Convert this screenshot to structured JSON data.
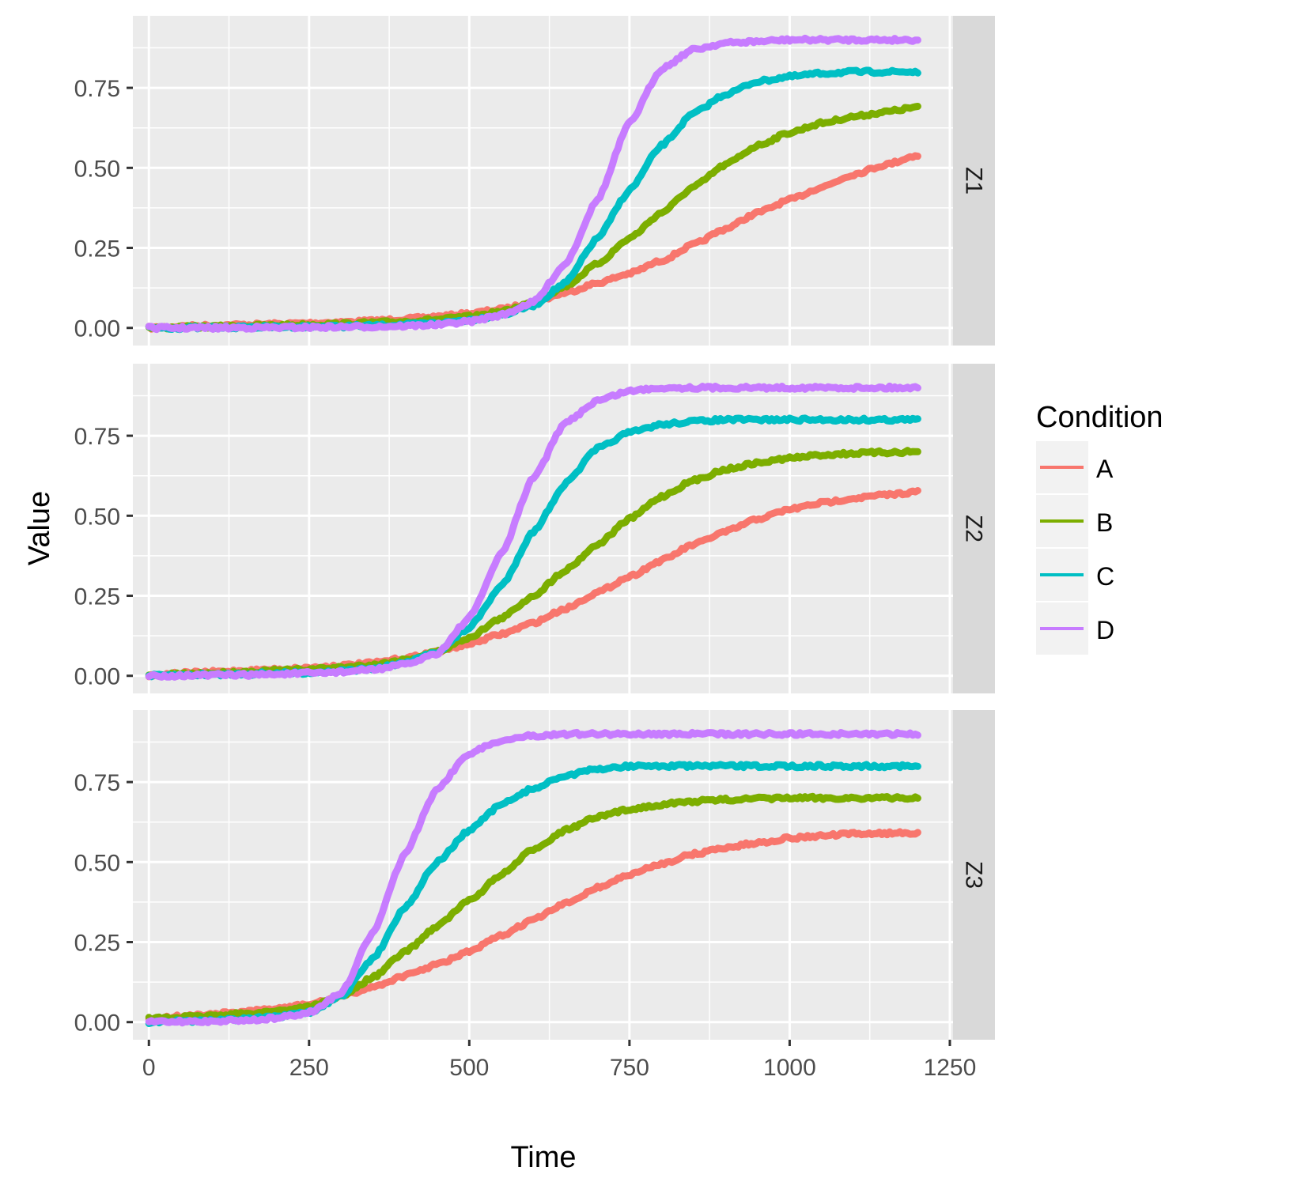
{
  "chart_data": {
    "type": "line",
    "facet_by": "rows",
    "xlabel": "Time",
    "ylabel": "Value",
    "xlim": [
      -25,
      1255
    ],
    "ylim": [
      -0.055,
      0.975
    ],
    "x_ticks": [
      0,
      250,
      500,
      750,
      1000,
      1250
    ],
    "x_tick_labels": [
      "0",
      "250",
      "500",
      "750",
      "1000",
      "1250"
    ],
    "y_ticks": [
      0,
      0.25,
      0.5,
      0.75
    ],
    "y_tick_labels": [
      "0.00",
      "0.25",
      "0.50",
      "0.75"
    ],
    "grid": true,
    "legend": {
      "title": "Condition",
      "position": "right",
      "entries": [
        "A",
        "B",
        "C",
        "D"
      ]
    },
    "colors": {
      "A": "#F8766D",
      "B": "#7CAE00",
      "C": "#00BFC4",
      "D": "#C77CFF",
      "panel_bg": "#EBEBEB",
      "strip_bg": "#D9D9D9",
      "grid": "#FFFFFF"
    },
    "x_points": [
      0,
      50,
      100,
      150,
      200,
      250,
      300,
      350,
      400,
      450,
      500,
      550,
      600,
      650,
      700,
      750,
      800,
      850,
      900,
      950,
      1000,
      1050,
      1100,
      1150,
      1200
    ],
    "panels": [
      {
        "label": "Z1",
        "series": [
          {
            "name": "A",
            "values": [
              0.0,
              0.005,
              0.008,
              0.01,
              0.012,
              0.015,
              0.018,
              0.022,
              0.028,
              0.035,
              0.045,
              0.058,
              0.08,
              0.11,
              0.14,
              0.17,
              0.21,
              0.26,
              0.31,
              0.36,
              0.4,
              0.44,
              0.48,
              0.51,
              0.54
            ]
          },
          {
            "name": "B",
            "values": [
              0.0,
              0.002,
              0.004,
              0.006,
              0.008,
              0.01,
              0.012,
              0.016,
              0.02,
              0.026,
              0.035,
              0.05,
              0.08,
              0.13,
              0.2,
              0.28,
              0.36,
              0.44,
              0.51,
              0.57,
              0.61,
              0.64,
              0.66,
              0.675,
              0.69
            ]
          },
          {
            "name": "C",
            "values": [
              0.0,
              0.0,
              0.001,
              0.002,
              0.003,
              0.004,
              0.005,
              0.007,
              0.01,
              0.015,
              0.025,
              0.04,
              0.07,
              0.14,
              0.28,
              0.43,
              0.57,
              0.67,
              0.73,
              0.77,
              0.785,
              0.795,
              0.8,
              0.8,
              0.8
            ]
          },
          {
            "name": "D",
            "values": [
              0.0,
              0.0,
              0.0,
              0.001,
              0.001,
              0.002,
              0.003,
              0.004,
              0.006,
              0.01,
              0.02,
              0.04,
              0.08,
              0.2,
              0.4,
              0.64,
              0.81,
              0.87,
              0.89,
              0.895,
              0.9,
              0.9,
              0.9,
              0.9,
              0.9
            ]
          }
        ]
      },
      {
        "label": "Z2",
        "series": [
          {
            "name": "A",
            "values": [
              0.0,
              0.008,
              0.012,
              0.016,
              0.02,
              0.025,
              0.032,
              0.04,
              0.055,
              0.075,
              0.1,
              0.13,
              0.165,
              0.21,
              0.26,
              0.31,
              0.36,
              0.41,
              0.45,
              0.49,
              0.52,
              0.54,
              0.555,
              0.565,
              0.575
            ]
          },
          {
            "name": "B",
            "values": [
              0.0,
              0.005,
              0.008,
              0.012,
              0.016,
              0.02,
              0.026,
              0.034,
              0.05,
              0.075,
              0.12,
              0.18,
              0.25,
              0.33,
              0.41,
              0.49,
              0.56,
              0.61,
              0.645,
              0.665,
              0.68,
              0.69,
              0.695,
              0.698,
              0.7
            ]
          },
          {
            "name": "C",
            "values": [
              0.0,
              0.002,
              0.004,
              0.006,
              0.008,
              0.01,
              0.015,
              0.022,
              0.04,
              0.075,
              0.15,
              0.28,
              0.45,
              0.6,
              0.71,
              0.76,
              0.785,
              0.795,
              0.8,
              0.8,
              0.8,
              0.8,
              0.8,
              0.8,
              0.8
            ]
          },
          {
            "name": "D",
            "values": [
              0.0,
              0.001,
              0.002,
              0.003,
              0.005,
              0.008,
              0.012,
              0.02,
              0.035,
              0.07,
              0.18,
              0.38,
              0.62,
              0.79,
              0.86,
              0.89,
              0.9,
              0.9,
              0.9,
              0.9,
              0.9,
              0.9,
              0.9,
              0.9,
              0.9
            ]
          }
        ]
      },
      {
        "label": "Z3",
        "series": [
          {
            "name": "A",
            "values": [
              0.01,
              0.018,
              0.025,
              0.032,
              0.042,
              0.055,
              0.08,
              0.11,
              0.145,
              0.18,
              0.22,
              0.27,
              0.32,
              0.37,
              0.42,
              0.46,
              0.495,
              0.525,
              0.545,
              0.56,
              0.575,
              0.582,
              0.588,
              0.59,
              0.592
            ]
          },
          {
            "name": "B",
            "values": [
              0.01,
              0.015,
              0.02,
              0.026,
              0.035,
              0.048,
              0.08,
              0.14,
              0.22,
              0.3,
              0.38,
              0.46,
              0.54,
              0.6,
              0.64,
              0.665,
              0.68,
              0.69,
              0.695,
              0.698,
              0.7,
              0.7,
              0.7,
              0.7,
              0.7
            ]
          },
          {
            "name": "C",
            "values": [
              0.0,
              0.003,
              0.006,
              0.01,
              0.016,
              0.03,
              0.08,
              0.2,
              0.36,
              0.5,
              0.6,
              0.68,
              0.73,
              0.77,
              0.79,
              0.8,
              0.8,
              0.8,
              0.8,
              0.8,
              0.8,
              0.8,
              0.8,
              0.8,
              0.8
            ]
          },
          {
            "name": "D",
            "values": [
              0.0,
              0.001,
              0.003,
              0.006,
              0.012,
              0.03,
              0.09,
              0.28,
              0.53,
              0.73,
              0.84,
              0.88,
              0.895,
              0.9,
              0.9,
              0.9,
              0.9,
              0.9,
              0.9,
              0.9,
              0.9,
              0.9,
              0.9,
              0.9,
              0.9
            ]
          }
        ]
      }
    ]
  }
}
